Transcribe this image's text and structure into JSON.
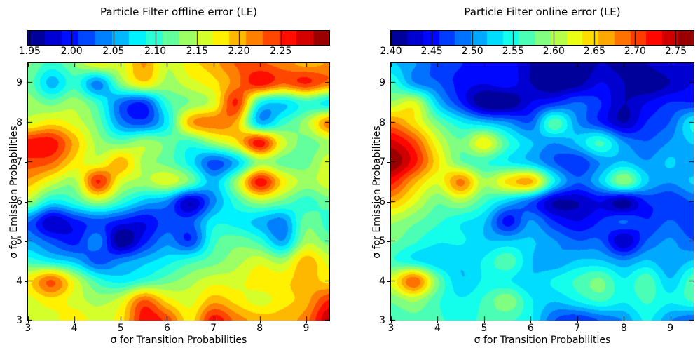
{
  "figure": {
    "background": "#ffffff",
    "text_color": "#000000"
  },
  "chart_data": [
    {
      "type": "heatmap",
      "title": "Particle Filter offline error (LE)",
      "xlabel": "σ for Transition Probabilities",
      "ylabel": "σ for Emission Probabilities",
      "colormap": "jet",
      "x_range": [
        3,
        9.5
      ],
      "y_range": [
        3,
        9.5
      ],
      "x_tick_values": [
        3,
        4,
        5,
        6,
        7,
        8,
        9
      ],
      "x_tick_labels": [
        "3",
        "4",
        "5",
        "6",
        "7",
        "8",
        "9"
      ],
      "y_tick_values": [
        3,
        4,
        5,
        6,
        7,
        8,
        9
      ],
      "y_tick_labels": [
        "3",
        "4",
        "5",
        "6",
        "7",
        "8",
        "9"
      ],
      "colorbar": {
        "vmin": 1.948,
        "vmax": 2.308,
        "levels": 18,
        "tick_values": [
          1.95,
          2.0,
          2.05,
          2.1,
          2.15,
          2.2,
          2.25
        ],
        "tick_labels": [
          "1.95",
          "2.00",
          "2.05",
          "2.10",
          "2.15",
          "2.20",
          "2.25"
        ]
      },
      "grid_x": [
        3,
        3.5,
        4,
        4.5,
        5,
        5.5,
        6,
        6.5,
        7,
        7.5,
        8,
        8.5,
        9,
        9.5
      ],
      "grid_y_top_to_bottom": [
        9.5,
        9,
        8.5,
        8,
        7.5,
        7,
        6.5,
        6,
        5.5,
        5,
        4.5,
        4,
        3.5,
        3
      ],
      "values_rows_top_to_bottom": [
        [
          2.13,
          2.1,
          2.13,
          2.17,
          2.16,
          2.21,
          2.15,
          2.18,
          2.2,
          2.23,
          2.23,
          2.22,
          2.2,
          2.21
        ],
        [
          2.12,
          2.06,
          2.1,
          2.04,
          2.13,
          2.18,
          2.14,
          2.16,
          2.18,
          2.22,
          2.26,
          2.23,
          2.25,
          2.22
        ],
        [
          2.14,
          2.12,
          2.14,
          2.1,
          2.03,
          2.01,
          2.1,
          2.13,
          2.16,
          2.25,
          2.09,
          2.07,
          2.1,
          2.08
        ],
        [
          2.16,
          2.18,
          2.16,
          2.12,
          2.04,
          2.02,
          2.08,
          2.2,
          2.22,
          2.2,
          2.06,
          2.1,
          2.14,
          2.22
        ],
        [
          2.26,
          2.26,
          2.2,
          2.14,
          2.12,
          2.14,
          2.12,
          2.1,
          2.14,
          2.18,
          2.26,
          2.16,
          2.12,
          2.14
        ],
        [
          2.24,
          2.23,
          2.18,
          2.16,
          2.2,
          2.14,
          2.12,
          2.08,
          2.02,
          2.06,
          2.14,
          2.12,
          2.12,
          2.16
        ],
        [
          2.2,
          2.16,
          2.14,
          2.25,
          2.16,
          2.14,
          2.16,
          2.12,
          2.06,
          2.14,
          2.26,
          2.18,
          2.14,
          2.16
        ],
        [
          2.14,
          2.08,
          2.1,
          2.14,
          2.1,
          2.06,
          2.04,
          1.97,
          2.04,
          2.1,
          2.14,
          2.12,
          2.1,
          2.12
        ],
        [
          2.03,
          1.97,
          2.0,
          2.02,
          2.0,
          1.99,
          2.02,
          2.02,
          2.08,
          2.08,
          2.06,
          2.04,
          2.12,
          2.1
        ],
        [
          2.05,
          2.02,
          2.0,
          2.04,
          1.95,
          2.0,
          2.04,
          2.01,
          2.1,
          2.12,
          2.1,
          2.05,
          2.14,
          2.12
        ],
        [
          2.1,
          2.08,
          2.06,
          2.02,
          2.04,
          2.06,
          2.08,
          2.1,
          2.12,
          2.14,
          2.16,
          2.14,
          2.2,
          2.16
        ],
        [
          2.18,
          2.23,
          2.16,
          2.1,
          2.08,
          2.1,
          2.12,
          2.14,
          2.16,
          2.16,
          2.18,
          2.18,
          2.2,
          2.18
        ],
        [
          2.16,
          2.18,
          2.16,
          2.14,
          2.16,
          2.23,
          2.18,
          2.16,
          2.2,
          2.18,
          2.16,
          2.18,
          2.2,
          2.25
        ],
        [
          2.15,
          2.16,
          2.18,
          2.16,
          2.18,
          2.26,
          2.24,
          2.18,
          2.26,
          2.22,
          2.2,
          2.2,
          2.22,
          2.29
        ]
      ]
    },
    {
      "type": "heatmap",
      "title": "Particle Filter online error (LE)",
      "xlabel": "σ for Transition Probabilities",
      "ylabel": "σ for Emission Probabilities",
      "colormap": "jet",
      "x_range": [
        3,
        9.5
      ],
      "y_range": [
        3,
        9.5
      ],
      "x_tick_values": [
        3,
        4,
        5,
        6,
        7,
        8,
        9
      ],
      "x_tick_labels": [
        "3",
        "4",
        "5",
        "6",
        "7",
        "8",
        "9"
      ],
      "y_tick_values": [
        3,
        4,
        5,
        6,
        7,
        8,
        9
      ],
      "y_tick_labels": [
        "3",
        "4",
        "5",
        "6",
        "7",
        "8",
        "9"
      ],
      "colorbar": {
        "vmin": 2.4,
        "vmax": 2.772,
        "levels": 19,
        "tick_values": [
          2.4,
          2.45,
          2.5,
          2.55,
          2.6,
          2.65,
          2.7,
          2.75
        ],
        "tick_labels": [
          "2.40",
          "2.45",
          "2.50",
          "2.55",
          "2.60",
          "2.65",
          "2.70",
          "2.75"
        ]
      },
      "grid_x": [
        3,
        3.5,
        4,
        4.5,
        5,
        5.5,
        6,
        6.5,
        7,
        7.5,
        8,
        8.5,
        9,
        9.5
      ],
      "grid_y_top_to_bottom": [
        9.5,
        9,
        8.5,
        8,
        7.5,
        7,
        6.5,
        6,
        5.5,
        5,
        4.5,
        4,
        3.5,
        3
      ],
      "values_rows_top_to_bottom": [
        [
          2.52,
          2.5,
          2.47,
          2.46,
          2.44,
          2.45,
          2.42,
          2.41,
          2.4,
          2.42,
          2.41,
          2.42,
          2.44,
          2.43
        ],
        [
          2.56,
          2.5,
          2.48,
          2.45,
          2.44,
          2.45,
          2.42,
          2.4,
          2.41,
          2.44,
          2.42,
          2.4,
          2.42,
          2.44
        ],
        [
          2.6,
          2.62,
          2.52,
          2.46,
          2.4,
          2.4,
          2.44,
          2.46,
          2.48,
          2.46,
          2.42,
          2.44,
          2.46,
          2.46
        ],
        [
          2.68,
          2.64,
          2.58,
          2.54,
          2.52,
          2.5,
          2.48,
          2.57,
          2.5,
          2.46,
          2.42,
          2.46,
          2.48,
          2.54
        ],
        [
          2.74,
          2.7,
          2.62,
          2.58,
          2.63,
          2.56,
          2.52,
          2.5,
          2.52,
          2.56,
          2.5,
          2.48,
          2.5,
          2.52
        ],
        [
          2.77,
          2.72,
          2.64,
          2.58,
          2.56,
          2.54,
          2.52,
          2.48,
          2.46,
          2.5,
          2.52,
          2.5,
          2.52,
          2.5
        ],
        [
          2.72,
          2.66,
          2.62,
          2.68,
          2.6,
          2.64,
          2.66,
          2.54,
          2.48,
          2.52,
          2.59,
          2.52,
          2.5,
          2.52
        ],
        [
          2.66,
          2.62,
          2.58,
          2.6,
          2.56,
          2.52,
          2.48,
          2.42,
          2.42,
          2.44,
          2.41,
          2.46,
          2.46,
          2.48
        ],
        [
          2.6,
          2.58,
          2.56,
          2.54,
          2.52,
          2.45,
          2.5,
          2.46,
          2.44,
          2.46,
          2.48,
          2.46,
          2.48,
          2.46
        ],
        [
          2.58,
          2.56,
          2.54,
          2.54,
          2.52,
          2.52,
          2.52,
          2.5,
          2.48,
          2.48,
          2.42,
          2.48,
          2.5,
          2.48
        ],
        [
          2.56,
          2.54,
          2.52,
          2.52,
          2.54,
          2.57,
          2.52,
          2.5,
          2.52,
          2.52,
          2.5,
          2.52,
          2.5,
          2.52
        ],
        [
          2.62,
          2.69,
          2.58,
          2.52,
          2.54,
          2.54,
          2.52,
          2.54,
          2.56,
          2.58,
          2.54,
          2.57,
          2.52,
          2.57
        ],
        [
          2.58,
          2.6,
          2.56,
          2.54,
          2.56,
          2.59,
          2.54,
          2.52,
          2.54,
          2.56,
          2.54,
          2.56,
          2.54,
          2.56
        ],
        [
          2.56,
          2.57,
          2.56,
          2.55,
          2.56,
          2.56,
          2.54,
          2.48,
          2.46,
          2.48,
          2.5,
          2.54,
          2.5,
          2.48
        ]
      ]
    }
  ]
}
